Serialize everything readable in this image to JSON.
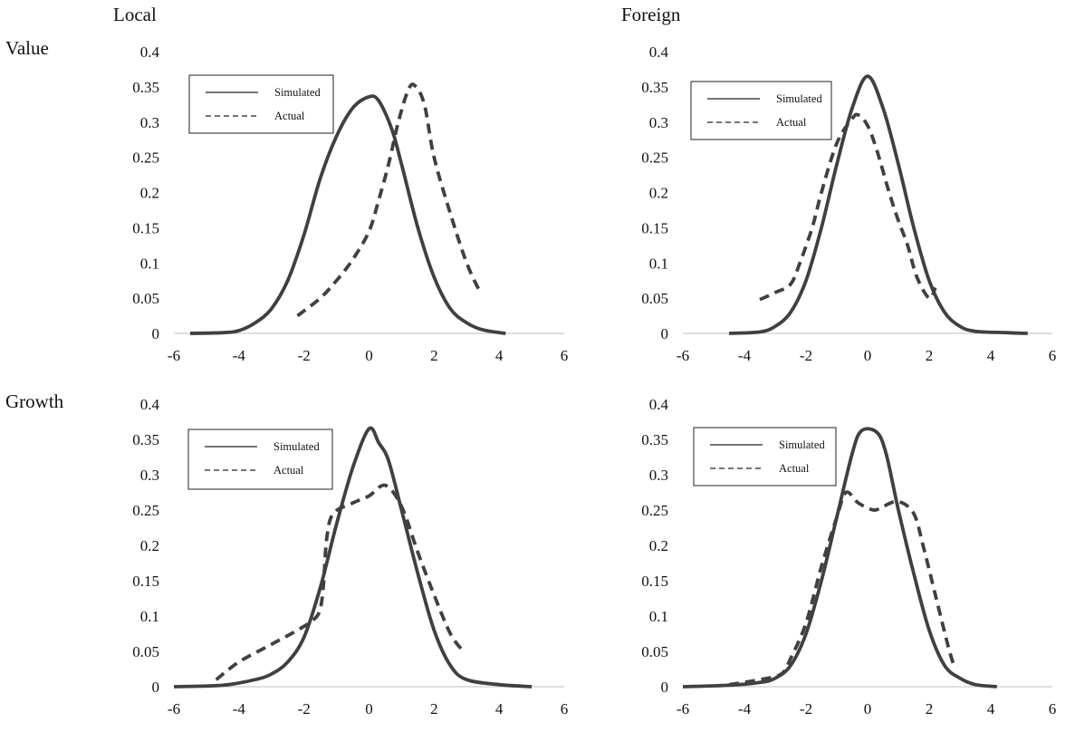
{
  "column_labels": [
    "Local",
    "Foreign"
  ],
  "row_labels": [
    "Value",
    "Growth"
  ],
  "chart_data": [
    {
      "type": "line",
      "column": "Local",
      "row": "Value",
      "xlim": [
        -6,
        6
      ],
      "ylim": [
        0,
        0.4
      ],
      "xticks": [
        -6,
        -4,
        -2,
        0,
        2,
        4,
        6
      ],
      "yticks": [
        0,
        0.05,
        0.1,
        0.15,
        0.2,
        0.25,
        0.3,
        0.35,
        0.4
      ],
      "ytick_labels": [
        "0",
        "0.05",
        "0.1",
        "0.15",
        "0.2",
        "0.25",
        "0.3",
        "0.35",
        "0.4"
      ],
      "legend": "top-left",
      "series": [
        {
          "name": "Simulated",
          "style": "solid",
          "points": [
            [
              -5.5,
              0.0
            ],
            [
              -4.5,
              0.001
            ],
            [
              -4,
              0.004
            ],
            [
              -3.5,
              0.015
            ],
            [
              -3,
              0.035
            ],
            [
              -2.5,
              0.075
            ],
            [
              -2,
              0.14
            ],
            [
              -1.5,
              0.22
            ],
            [
              -1,
              0.28
            ],
            [
              -0.5,
              0.32
            ],
            [
              0,
              0.336
            ],
            [
              0.3,
              0.33
            ],
            [
              0.7,
              0.29
            ],
            [
              1,
              0.24
            ],
            [
              1.5,
              0.15
            ],
            [
              2,
              0.08
            ],
            [
              2.5,
              0.035
            ],
            [
              3,
              0.015
            ],
            [
              3.5,
              0.005
            ],
            [
              4.2,
              0.0
            ]
          ]
        },
        {
          "name": "Actual",
          "style": "dashed",
          "points": [
            [
              -2.2,
              0.025
            ],
            [
              -1.5,
              0.05
            ],
            [
              -1,
              0.075
            ],
            [
              -0.5,
              0.105
            ],
            [
              0,
              0.145
            ],
            [
              0.3,
              0.19
            ],
            [
              0.6,
              0.24
            ],
            [
              0.9,
              0.3
            ],
            [
              1.2,
              0.345
            ],
            [
              1.4,
              0.352
            ],
            [
              1.7,
              0.325
            ],
            [
              2,
              0.25
            ],
            [
              2.5,
              0.17
            ],
            [
              3,
              0.1
            ],
            [
              3.4,
              0.06
            ]
          ]
        }
      ]
    },
    {
      "type": "line",
      "column": "Foreign",
      "row": "Value",
      "xlim": [
        -6,
        6
      ],
      "ylim": [
        0,
        0.4
      ],
      "xticks": [
        -6,
        -4,
        -2,
        0,
        2,
        4,
        6
      ],
      "yticks": [
        0,
        0.05,
        0.1,
        0.15,
        0.2,
        0.25,
        0.3,
        0.35,
        0.4
      ],
      "ytick_labels": [
        "0",
        "0.05",
        "0.1",
        "0.15",
        "0.2",
        "0.25",
        "0.3",
        "0.35",
        "0.4"
      ],
      "legend": "top-left",
      "series": [
        {
          "name": "Simulated",
          "style": "solid",
          "points": [
            [
              -4.5,
              0.0
            ],
            [
              -3.5,
              0.002
            ],
            [
              -3,
              0.01
            ],
            [
              -2.5,
              0.03
            ],
            [
              -2,
              0.075
            ],
            [
              -1.5,
              0.15
            ],
            [
              -1,
              0.24
            ],
            [
              -0.5,
              0.32
            ],
            [
              0,
              0.365
            ],
            [
              0.5,
              0.32
            ],
            [
              1,
              0.24
            ],
            [
              1.5,
              0.15
            ],
            [
              2,
              0.075
            ],
            [
              2.5,
              0.03
            ],
            [
              3,
              0.01
            ],
            [
              3.5,
              0.003
            ],
            [
              4.5,
              0.001
            ],
            [
              5.2,
              0.0
            ]
          ]
        },
        {
          "name": "Actual",
          "style": "dashed",
          "points": [
            [
              -3.5,
              0.048
            ],
            [
              -3,
              0.058
            ],
            [
              -2.5,
              0.07
            ],
            [
              -2.2,
              0.1
            ],
            [
              -1.8,
              0.15
            ],
            [
              -1.5,
              0.2
            ],
            [
              -1,
              0.27
            ],
            [
              -0.5,
              0.305
            ],
            [
              -0.3,
              0.31
            ],
            [
              0,
              0.295
            ],
            [
              0.3,
              0.26
            ],
            [
              0.7,
              0.2
            ],
            [
              1,
              0.16
            ],
            [
              1.3,
              0.125
            ],
            [
              1.6,
              0.08
            ],
            [
              2,
              0.05
            ],
            [
              2.2,
              0.065
            ]
          ]
        }
      ]
    },
    {
      "type": "line",
      "column": "Local",
      "row": "Growth",
      "xlim": [
        -6,
        6
      ],
      "ylim": [
        0,
        0.4
      ],
      "xticks": [
        -6,
        -4,
        -2,
        0,
        2,
        4,
        6
      ],
      "yticks": [
        0,
        0.05,
        0.1,
        0.15,
        0.2,
        0.25,
        0.3,
        0.35,
        0.4
      ],
      "ytick_labels": [
        "0",
        "0.05",
        "0.1",
        "0.15",
        "0.2",
        "0.25",
        "0.3",
        "0.35",
        "0.4"
      ],
      "legend": "top-left",
      "series": [
        {
          "name": "Simulated",
          "style": "solid",
          "points": [
            [
              -6,
              0.0
            ],
            [
              -4.5,
              0.002
            ],
            [
              -3.5,
              0.01
            ],
            [
              -3,
              0.018
            ],
            [
              -2.5,
              0.035
            ],
            [
              -2,
              0.07
            ],
            [
              -1.5,
              0.14
            ],
            [
              -1,
              0.23
            ],
            [
              -0.5,
              0.31
            ],
            [
              0,
              0.365
            ],
            [
              0.3,
              0.345
            ],
            [
              0.6,
              0.32
            ],
            [
              1,
              0.25
            ],
            [
              1.5,
              0.16
            ],
            [
              2,
              0.08
            ],
            [
              2.5,
              0.03
            ],
            [
              3,
              0.01
            ],
            [
              4,
              0.003
            ],
            [
              5,
              0.0
            ]
          ]
        },
        {
          "name": "Actual",
          "style": "dashed",
          "points": [
            [
              -4.7,
              0.01
            ],
            [
              -4,
              0.035
            ],
            [
              -3,
              0.06
            ],
            [
              -2.2,
              0.08
            ],
            [
              -1.7,
              0.095
            ],
            [
              -1.5,
              0.11
            ],
            [
              -1.4,
              0.145
            ],
            [
              -1.3,
              0.21
            ],
            [
              -1.1,
              0.245
            ],
            [
              -0.5,
              0.26
            ],
            [
              0,
              0.27
            ],
            [
              0.5,
              0.285
            ],
            [
              1,
              0.255
            ],
            [
              1.5,
              0.19
            ],
            [
              2,
              0.13
            ],
            [
              2.5,
              0.075
            ],
            [
              2.9,
              0.05
            ]
          ]
        }
      ]
    },
    {
      "type": "line",
      "column": "Foreign",
      "row": "Growth",
      "xlim": [
        -6,
        6
      ],
      "ylim": [
        0,
        0.4
      ],
      "xticks": [
        -6,
        -4,
        -2,
        0,
        2,
        4,
        6
      ],
      "yticks": [
        0,
        0.05,
        0.1,
        0.15,
        0.2,
        0.25,
        0.3,
        0.35,
        0.4
      ],
      "ytick_labels": [
        "0",
        "0.05",
        "0.1",
        "0.15",
        "0.2",
        "0.25",
        "0.3",
        "0.35",
        "0.4"
      ],
      "legend": "top-left",
      "series": [
        {
          "name": "Simulated",
          "style": "solid",
          "points": [
            [
              -6,
              0.0
            ],
            [
              -4.5,
              0.002
            ],
            [
              -3.5,
              0.006
            ],
            [
              -3,
              0.012
            ],
            [
              -2.5,
              0.03
            ],
            [
              -2,
              0.075
            ],
            [
              -1.5,
              0.15
            ],
            [
              -1,
              0.24
            ],
            [
              -0.5,
              0.33
            ],
            [
              -0.2,
              0.362
            ],
            [
              0.3,
              0.36
            ],
            [
              0.6,
              0.33
            ],
            [
              1,
              0.25
            ],
            [
              1.5,
              0.16
            ],
            [
              2,
              0.08
            ],
            [
              2.5,
              0.03
            ],
            [
              3,
              0.012
            ],
            [
              3.5,
              0.003
            ],
            [
              4.2,
              0.0
            ]
          ]
        },
        {
          "name": "Actual",
          "style": "dashed",
          "points": [
            [
              -4.5,
              0.003
            ],
            [
              -3.5,
              0.01
            ],
            [
              -2.8,
              0.018
            ],
            [
              -2.5,
              0.04
            ],
            [
              -2,
              0.09
            ],
            [
              -1.5,
              0.17
            ],
            [
              -1,
              0.24
            ],
            [
              -0.7,
              0.275
            ],
            [
              -0.3,
              0.26
            ],
            [
              0.2,
              0.25
            ],
            [
              0.5,
              0.255
            ],
            [
              1,
              0.262
            ],
            [
              1.5,
              0.245
            ],
            [
              1.8,
              0.2
            ],
            [
              2.2,
              0.13
            ],
            [
              2.6,
              0.06
            ],
            [
              2.8,
              0.03
            ]
          ]
        }
      ]
    }
  ]
}
